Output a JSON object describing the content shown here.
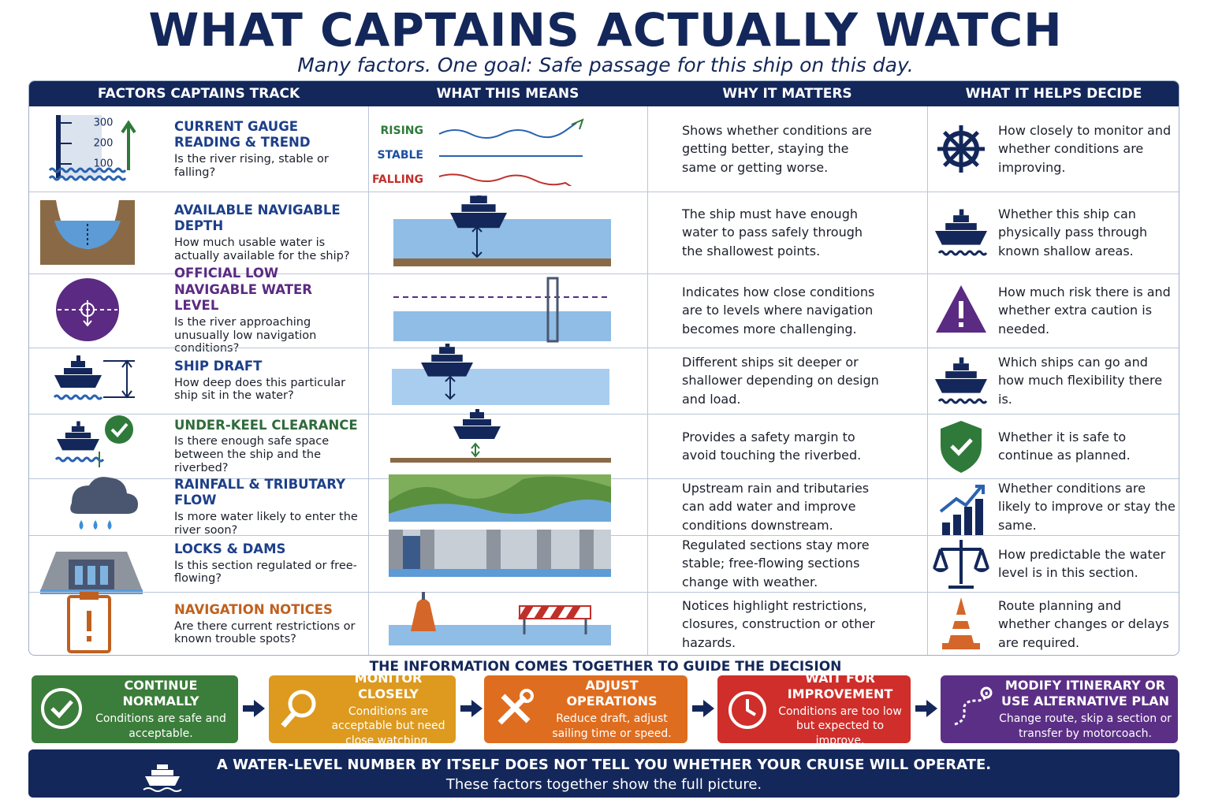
{
  "title": "WHAT CAPTAINS ACTUALLY WATCH",
  "subtitle": "Many factors. One goal: Safe passage for this ship on this day.",
  "table": {
    "headers": [
      "FACTORS CAPTAINS TRACK",
      "WHAT THIS MEANS",
      "WHY IT MATTERS",
      "WHAT IT HELPS DECIDE"
    ],
    "gauge_labels": [
      "300",
      "200",
      "100"
    ],
    "trend_labels": [
      "RISING",
      "STABLE",
      "FALLING"
    ],
    "rows": [
      {
        "factor": "CURRENT GAUGE READING & TREND",
        "question": "Is the river rising, stable or falling?",
        "why": "Shows whether conditions are getting better, staying the same or getting worse.",
        "decide": "How closely to monitor and whether conditions are improving."
      },
      {
        "factor": "AVAILABLE NAVIGABLE DEPTH",
        "question": "How much usable water is actually available for the ship?",
        "why": "The ship must have enough water to pass safely through the shallowest points.",
        "decide": "Whether this ship can physically pass through known shallow areas."
      },
      {
        "factor": "OFFICIAL LOW NAVIGABLE WATER LEVEL",
        "question": "Is the river approaching unusually low navigation conditions?",
        "why": "Indicates how close conditions are to levels where navigation becomes more challenging.",
        "decide": "How much risk there is and whether extra caution is needed."
      },
      {
        "factor": "SHIP DRAFT",
        "question": "How deep does this particular ship sit in the water?",
        "why": "Different ships sit deeper or shallower depending on design and load.",
        "decide": "Which ships can go and how much flexibility there is."
      },
      {
        "factor": "UNDER-KEEL CLEARANCE",
        "question": "Is there enough safe space between the ship and the riverbed?",
        "why": "Provides a safety margin to avoid touching the riverbed.",
        "decide": "Whether it is safe to continue as planned."
      },
      {
        "factor": "RAINFALL & TRIBUTARY FLOW",
        "question": "Is more water likely to enter the river soon?",
        "why": "Upstream rain and tributaries can add water and improve conditions downstream.",
        "decide": "Whether conditions are likely to improve or stay the same."
      },
      {
        "factor": "LOCKS & DAMS",
        "question": "Is this section regulated or free-flowing?",
        "why": "Regulated sections stay more stable; free-flowing sections change with weather.",
        "decide": "How predictable the water level is in this section."
      },
      {
        "factor": "NAVIGATION NOTICES",
        "question": "Are there current restrictions or known trouble spots?",
        "why": "Notices highlight restrictions, closures, construction or other hazards.",
        "decide": "Route planning and whether changes or delays are required."
      }
    ]
  },
  "decision": {
    "heading": "THE INFORMATION COMES TOGETHER TO GUIDE THE DECISION",
    "steps": [
      {
        "title": "CONTINUE NORMALLY",
        "text": "Conditions are safe and acceptable."
      },
      {
        "title": "MONITOR CLOSELY",
        "text": "Conditions are acceptable but need close watching."
      },
      {
        "title": "ADJUST OPERATIONS",
        "text": "Reduce draft, adjust sailing time or speed."
      },
      {
        "title": "WAIT FOR IMPROVEMENT",
        "text": "Conditions are too low but expected to improve."
      },
      {
        "title": "MODIFY ITINERARY OR USE ALTERNATIVE PLAN",
        "text": "Change route, skip a section or transfer by motorcoach."
      }
    ]
  },
  "footer": {
    "line1": "A WATER-LEVEL NUMBER BY ITSELF DOES NOT TELL YOU WHETHER YOUR CRUISE WILL OPERATE.",
    "line2": "These factors together show the full picture."
  }
}
